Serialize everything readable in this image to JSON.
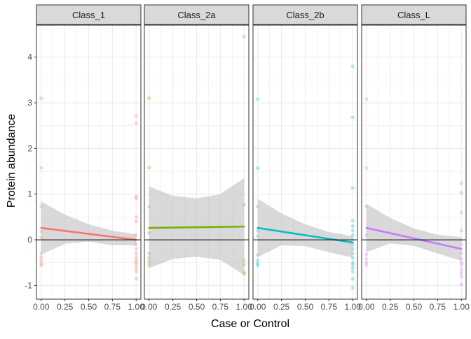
{
  "chart_data": {
    "type": "scatter",
    "xlabel": "Case or Control",
    "ylabel": "Protein abundance",
    "xlim": [
      -0.05,
      1.05
    ],
    "ylim": [
      -1.3,
      4.7
    ],
    "x_ticks": [
      0,
      0.25,
      0.5,
      0.75,
      1
    ],
    "x_tick_labels": [
      "0.00",
      "0.25",
      "0.50",
      "0.75",
      "1.00"
    ],
    "y_ticks": [
      -1,
      0,
      1,
      2,
      3,
      4
    ],
    "y_tick_labels": [
      "-1",
      "0",
      "1",
      "2",
      "3",
      "4"
    ],
    "hline": 0,
    "grid": true,
    "legend": "none",
    "colors": {
      "Class_1": "#f8766d",
      "Class_2a": "#7cae00",
      "Class_2b": "#00bfc4",
      "Class_L": "#c77cff",
      "band": "#bfbfbf",
      "strip_bg": "#d9d9d9",
      "grid": "#ebebeb"
    },
    "panels": [
      {
        "label": "Class_1",
        "line": {
          "x": [
            0,
            1
          ],
          "y": [
            0.26,
            0.0
          ]
        },
        "band_x": [
          0,
          0.25,
          0.5,
          0.75,
          1
        ],
        "band_upper": [
          0.84,
          0.55,
          0.34,
          0.2,
          0.12
        ],
        "band_lower": [
          -0.32,
          -0.09,
          -0.04,
          -0.12,
          -0.12
        ],
        "points": [
          {
            "x": 0,
            "y": 3.1
          },
          {
            "x": 0,
            "y": 1.58
          },
          {
            "x": 0,
            "y": 0.72
          },
          {
            "x": 0,
            "y": 0.18
          },
          {
            "x": 0,
            "y": 0.05
          },
          {
            "x": 0,
            "y": -0.3
          },
          {
            "x": 0,
            "y": -0.38
          },
          {
            "x": 0,
            "y": -0.45
          },
          {
            "x": 0,
            "y": -0.52
          },
          {
            "x": 0,
            "y": -0.56
          },
          {
            "x": 1,
            "y": 2.72
          },
          {
            "x": 1,
            "y": 2.55
          },
          {
            "x": 1,
            "y": 0.95
          },
          {
            "x": 1,
            "y": 0.9
          },
          {
            "x": 1,
            "y": 0.5
          },
          {
            "x": 1,
            "y": 0.4
          },
          {
            "x": 1,
            "y": 0.1
          },
          {
            "x": 1,
            "y": -0.1
          },
          {
            "x": 1,
            "y": -0.2
          },
          {
            "x": 1,
            "y": -0.3
          },
          {
            "x": 1,
            "y": -0.38
          },
          {
            "x": 1,
            "y": -0.45
          },
          {
            "x": 1,
            "y": -0.5
          },
          {
            "x": 1,
            "y": -0.55
          },
          {
            "x": 1,
            "y": -0.62
          },
          {
            "x": 1,
            "y": -0.7
          },
          {
            "x": 1,
            "y": -0.85
          }
        ]
      },
      {
        "label": "Class_2a",
        "line": {
          "x": [
            0,
            1
          ],
          "y": [
            0.26,
            0.29
          ]
        },
        "band_x": [
          0,
          0.25,
          0.5,
          0.75,
          1
        ],
        "band_upper": [
          1.17,
          0.96,
          0.91,
          1.0,
          1.35
        ],
        "band_lower": [
          -0.62,
          -0.42,
          -0.37,
          -0.44,
          -0.77
        ],
        "points": [
          {
            "x": 0,
            "y": 3.1
          },
          {
            "x": 0,
            "y": 1.58
          },
          {
            "x": 0,
            "y": 0.72
          },
          {
            "x": 0,
            "y": 0.15
          },
          {
            "x": 0,
            "y": -0.3
          },
          {
            "x": 0,
            "y": -0.4
          },
          {
            "x": 0,
            "y": -0.48
          },
          {
            "x": 0,
            "y": -0.55
          },
          {
            "x": 1,
            "y": 4.45
          },
          {
            "x": 1,
            "y": 0.77
          },
          {
            "x": 1,
            "y": -0.45
          },
          {
            "x": 1,
            "y": -0.55
          },
          {
            "x": 1,
            "y": -0.72
          },
          {
            "x": 1,
            "y": -0.75
          }
        ]
      },
      {
        "label": "Class_2b",
        "line": {
          "x": [
            0,
            1
          ],
          "y": [
            0.26,
            -0.06
          ]
        },
        "band_x": [
          0,
          0.25,
          0.5,
          0.75,
          1
        ],
        "band_upper": [
          0.9,
          0.58,
          0.34,
          0.17,
          0.08
        ],
        "band_lower": [
          -0.38,
          -0.12,
          -0.14,
          -0.27,
          -0.39
        ],
        "points": [
          {
            "x": 0,
            "y": 3.08
          },
          {
            "x": 0,
            "y": 1.57
          },
          {
            "x": 0,
            "y": 0.73
          },
          {
            "x": 0,
            "y": 0.2
          },
          {
            "x": 0,
            "y": 0.08
          },
          {
            "x": 0,
            "y": -0.33
          },
          {
            "x": 0,
            "y": -0.45
          },
          {
            "x": 0,
            "y": -0.52
          },
          {
            "x": 0,
            "y": -0.56
          },
          {
            "x": 1,
            "y": 3.8
          },
          {
            "x": 1,
            "y": 2.68
          },
          {
            "x": 1,
            "y": 1.13
          },
          {
            "x": 1,
            "y": 0.42
          },
          {
            "x": 1,
            "y": 0.3
          },
          {
            "x": 1,
            "y": 0.2
          },
          {
            "x": 1,
            "y": 0.1
          },
          {
            "x": 1,
            "y": 0.0
          },
          {
            "x": 1,
            "y": -0.1
          },
          {
            "x": 1,
            "y": -0.2
          },
          {
            "x": 1,
            "y": -0.3
          },
          {
            "x": 1,
            "y": -0.4
          },
          {
            "x": 1,
            "y": -0.5
          },
          {
            "x": 1,
            "y": -0.55
          },
          {
            "x": 1,
            "y": -0.62
          },
          {
            "x": 1,
            "y": -0.7
          },
          {
            "x": 1,
            "y": -0.85
          },
          {
            "x": 1,
            "y": -1.05
          }
        ]
      },
      {
        "label": "Class_L",
        "line": {
          "x": [
            0,
            1
          ],
          "y": [
            0.26,
            -0.2
          ]
        },
        "band_x": [
          0,
          0.25,
          0.5,
          0.75,
          1
        ],
        "band_upper": [
          0.79,
          0.48,
          0.25,
          0.11,
          0.06
        ],
        "band_lower": [
          -0.27,
          -0.08,
          -0.13,
          -0.3,
          -0.46
        ],
        "points": [
          {
            "x": 0,
            "y": 3.08
          },
          {
            "x": 0,
            "y": 1.57
          },
          {
            "x": 0,
            "y": 0.73
          },
          {
            "x": 0,
            "y": 0.1
          },
          {
            "x": 0,
            "y": -0.32
          },
          {
            "x": 0,
            "y": -0.42
          },
          {
            "x": 0,
            "y": -0.5
          },
          {
            "x": 0,
            "y": -0.56
          },
          {
            "x": 1,
            "y": 1.24
          },
          {
            "x": 1,
            "y": 1.03
          },
          {
            "x": 1,
            "y": 0.6
          },
          {
            "x": 1,
            "y": 0.2
          },
          {
            "x": 1,
            "y": 0.0
          },
          {
            "x": 1,
            "y": -0.1
          },
          {
            "x": 1,
            "y": -0.3
          },
          {
            "x": 1,
            "y": -0.42
          },
          {
            "x": 1,
            "y": -0.5
          },
          {
            "x": 1,
            "y": -0.55
          },
          {
            "x": 1,
            "y": -0.65
          },
          {
            "x": 1,
            "y": -0.72
          },
          {
            "x": 1,
            "y": -0.8
          },
          {
            "x": 1,
            "y": -0.98
          }
        ]
      }
    ]
  }
}
